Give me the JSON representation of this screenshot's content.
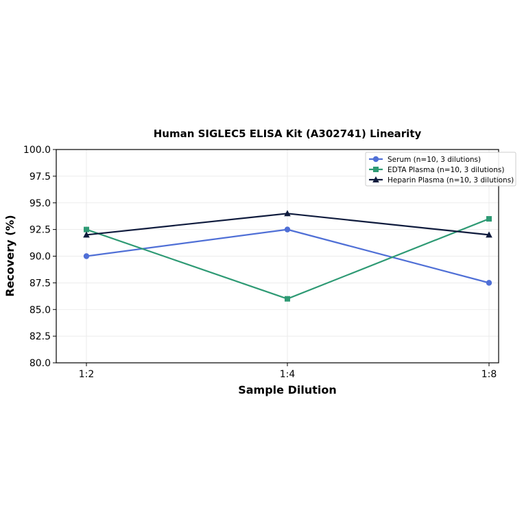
{
  "chart_data": {
    "type": "line",
    "title": "Human SIGLEC5 ELISA Kit (A302741) Linearity",
    "xlabel": "Sample Dilution",
    "ylabel": "Recovery (%)",
    "categories": [
      "1:2",
      "1:4",
      "1:8"
    ],
    "ylim": [
      80.0,
      100.0
    ],
    "yticks": [
      "80.0",
      "82.5",
      "85.0",
      "87.5",
      "90.0",
      "92.5",
      "95.0",
      "97.5",
      "100.0"
    ],
    "grid": true,
    "legend_position": "top-right",
    "series": [
      {
        "name": "Serum (n=10, 3 dilutions)",
        "values": [
          90.0,
          92.5,
          87.5
        ],
        "color": "#4f6fd6",
        "marker": "circle"
      },
      {
        "name": "EDTA Plasma (n=10, 3 dilutions)",
        "values": [
          92.5,
          86.0,
          93.5
        ],
        "color": "#2e9a74",
        "marker": "square"
      },
      {
        "name": "Heparin Plasma (n=10, 3 dilutions)",
        "values": [
          92.0,
          94.0,
          92.0
        ],
        "color": "#0f1b3d",
        "marker": "triangle"
      }
    ]
  }
}
